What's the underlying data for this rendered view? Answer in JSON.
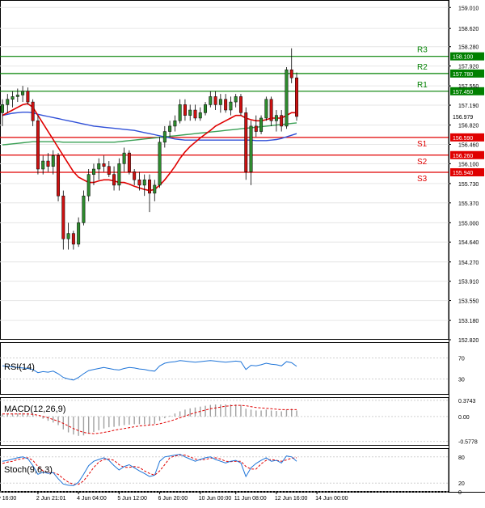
{
  "chart_data": {
    "type": "candlestick",
    "price_axis": {
      "ticks": [
        "159.010",
        "158.620",
        "158.280",
        "157.920",
        "157.550",
        "157.190",
        "156.820",
        "156.460",
        "156.100",
        "155.730",
        "155.370",
        "155.000",
        "154.640",
        "154.270",
        "153.910",
        "153.550",
        "153.180",
        "152.820"
      ],
      "ylim": [
        152.82,
        159.15
      ]
    },
    "levels": [
      {
        "label": "R3",
        "price": 158.1,
        "price_label": "158.100",
        "color": "#008000"
      },
      {
        "label": "R2",
        "price": 157.78,
        "price_label": "157.780",
        "color": "#008000"
      },
      {
        "label": "R1",
        "price": 157.45,
        "price_label": "157.450",
        "color": "#008000"
      },
      {
        "label": "S1",
        "price": 156.59,
        "price_label": "156.590",
        "color": "#e00000"
      },
      {
        "label": "S2",
        "price": 156.26,
        "price_label": "156.260",
        "color": "#e00000"
      },
      {
        "label": "S3",
        "price": 155.94,
        "price_label": "155.940",
        "color": "#e00000"
      }
    ],
    "last_price": {
      "price": 156.979,
      "label": "156.979"
    },
    "candles": [
      {
        "o": 157.05,
        "h": 157.3,
        "l": 156.8,
        "c": 157.2
      },
      {
        "o": 157.2,
        "h": 157.4,
        "l": 157.05,
        "c": 157.3
      },
      {
        "o": 157.3,
        "h": 157.45,
        "l": 157.15,
        "c": 157.35
      },
      {
        "o": 157.35,
        "h": 157.5,
        "l": 157.25,
        "c": 157.38
      },
      {
        "o": 157.38,
        "h": 157.55,
        "l": 157.25,
        "c": 157.45
      },
      {
        "o": 157.45,
        "h": 157.52,
        "l": 157.2,
        "c": 157.25
      },
      {
        "o": 157.25,
        "h": 157.3,
        "l": 156.8,
        "c": 156.9
      },
      {
        "o": 156.9,
        "h": 157.0,
        "l": 155.9,
        "c": 156.0
      },
      {
        "o": 156.0,
        "h": 156.25,
        "l": 155.9,
        "c": 156.15
      },
      {
        "o": 156.15,
        "h": 156.3,
        "l": 155.95,
        "c": 156.05
      },
      {
        "o": 156.05,
        "h": 156.35,
        "l": 155.9,
        "c": 156.25
      },
      {
        "o": 156.25,
        "h": 156.3,
        "l": 155.4,
        "c": 155.5
      },
      {
        "o": 155.5,
        "h": 155.6,
        "l": 154.5,
        "c": 154.7
      },
      {
        "o": 154.7,
        "h": 155.0,
        "l": 154.5,
        "c": 154.8
      },
      {
        "o": 154.8,
        "h": 154.85,
        "l": 154.5,
        "c": 154.6
      },
      {
        "o": 154.6,
        "h": 155.1,
        "l": 154.55,
        "c": 155.0
      },
      {
        "o": 155.0,
        "h": 155.6,
        "l": 154.95,
        "c": 155.5
      },
      {
        "o": 155.5,
        "h": 156.0,
        "l": 155.4,
        "c": 155.9
      },
      {
        "o": 155.9,
        "h": 156.1,
        "l": 155.7,
        "c": 156.0
      },
      {
        "o": 156.0,
        "h": 156.2,
        "l": 155.8,
        "c": 156.1
      },
      {
        "o": 156.1,
        "h": 156.25,
        "l": 155.95,
        "c": 156.05
      },
      {
        "o": 156.05,
        "h": 156.15,
        "l": 155.85,
        "c": 155.9
      },
      {
        "o": 155.9,
        "h": 156.05,
        "l": 155.6,
        "c": 155.7
      },
      {
        "o": 155.7,
        "h": 156.2,
        "l": 155.6,
        "c": 156.1
      },
      {
        "o": 156.1,
        "h": 156.4,
        "l": 155.95,
        "c": 156.3
      },
      {
        "o": 156.3,
        "h": 156.35,
        "l": 155.9,
        "c": 155.95
      },
      {
        "o": 155.95,
        "h": 156.0,
        "l": 155.7,
        "c": 155.8
      },
      {
        "o": 155.8,
        "h": 155.95,
        "l": 155.6,
        "c": 155.7
      },
      {
        "o": 155.7,
        "h": 155.9,
        "l": 155.5,
        "c": 155.8
      },
      {
        "o": 155.8,
        "h": 155.9,
        "l": 155.2,
        "c": 155.55
      },
      {
        "o": 155.55,
        "h": 155.8,
        "l": 155.4,
        "c": 155.7
      },
      {
        "o": 155.7,
        "h": 156.6,
        "l": 155.65,
        "c": 156.5
      },
      {
        "o": 156.5,
        "h": 156.8,
        "l": 156.4,
        "c": 156.7
      },
      {
        "o": 156.7,
        "h": 156.9,
        "l": 156.6,
        "c": 156.8
      },
      {
        "o": 156.8,
        "h": 157.0,
        "l": 156.7,
        "c": 156.9
      },
      {
        "o": 156.9,
        "h": 157.3,
        "l": 156.85,
        "c": 157.2
      },
      {
        "o": 157.2,
        "h": 157.3,
        "l": 156.9,
        "c": 157.0
      },
      {
        "o": 157.0,
        "h": 157.2,
        "l": 156.9,
        "c": 157.1
      },
      {
        "o": 157.1,
        "h": 157.2,
        "l": 156.9,
        "c": 156.95
      },
      {
        "o": 156.95,
        "h": 157.15,
        "l": 156.9,
        "c": 157.05
      },
      {
        "o": 157.05,
        "h": 157.25,
        "l": 157.0,
        "c": 157.2
      },
      {
        "o": 157.2,
        "h": 157.45,
        "l": 157.15,
        "c": 157.35
      },
      {
        "o": 157.35,
        "h": 157.45,
        "l": 157.1,
        "c": 157.2
      },
      {
        "o": 157.2,
        "h": 157.4,
        "l": 157.05,
        "c": 157.3
      },
      {
        "o": 157.3,
        "h": 157.4,
        "l": 157.05,
        "c": 157.1
      },
      {
        "o": 157.1,
        "h": 157.35,
        "l": 157.0,
        "c": 157.25
      },
      {
        "o": 157.25,
        "h": 157.4,
        "l": 157.15,
        "c": 157.35
      },
      {
        "o": 157.35,
        "h": 157.4,
        "l": 157.0,
        "c": 157.05
      },
      {
        "o": 157.05,
        "h": 157.15,
        "l": 155.8,
        "c": 155.95
      },
      {
        "o": 155.95,
        "h": 156.9,
        "l": 155.7,
        "c": 156.8
      },
      {
        "o": 156.8,
        "h": 157.0,
        "l": 156.6,
        "c": 156.7
      },
      {
        "o": 156.7,
        "h": 157.0,
        "l": 156.65,
        "c": 156.95
      },
      {
        "o": 156.95,
        "h": 157.35,
        "l": 156.9,
        "c": 157.3
      },
      {
        "o": 157.3,
        "h": 157.35,
        "l": 156.8,
        "c": 156.9
      },
      {
        "o": 156.9,
        "h": 157.1,
        "l": 156.7,
        "c": 157.0
      },
      {
        "o": 157.0,
        "h": 157.1,
        "l": 156.7,
        "c": 156.8
      },
      {
        "o": 156.8,
        "h": 157.9,
        "l": 156.75,
        "c": 157.85
      },
      {
        "o": 157.85,
        "h": 158.25,
        "l": 157.6,
        "c": 157.7
      },
      {
        "o": 157.7,
        "h": 157.8,
        "l": 156.9,
        "c": 156.98
      }
    ],
    "sma_fast_color": "#e00000",
    "sma_mid_color": "#3050d8",
    "sma_slow_color": "#3aa055",
    "sma_fast": [
      157.0,
      157.05,
      157.1,
      157.15,
      157.2,
      157.22,
      157.15,
      157.0,
      156.85,
      156.7,
      156.55,
      156.4,
      156.25,
      156.1,
      155.95,
      155.85,
      155.8,
      155.75,
      155.75,
      155.78,
      155.8,
      155.8,
      155.78,
      155.75,
      155.75,
      155.72,
      155.68,
      155.65,
      155.62,
      155.6,
      155.62,
      155.7,
      155.8,
      155.92,
      156.05,
      156.2,
      156.32,
      156.42,
      156.5,
      156.58,
      156.65,
      156.72,
      156.8,
      156.85,
      156.9,
      156.95,
      157.0,
      157.0,
      156.95,
      156.92,
      156.9,
      156.9,
      156.92,
      156.95,
      156.95,
      156.95,
      157.0,
      157.05,
      157.05
    ],
    "sma_mid": [
      157.0,
      157.02,
      157.04,
      157.05,
      157.06,
      157.06,
      157.05,
      157.02,
      157.0,
      156.98,
      156.96,
      156.94,
      156.92,
      156.9,
      156.88,
      156.86,
      156.84,
      156.82,
      156.8,
      156.79,
      156.78,
      156.77,
      156.76,
      156.75,
      156.74,
      156.73,
      156.72,
      156.7,
      156.68,
      156.66,
      156.64,
      156.62,
      156.6,
      156.58,
      156.56,
      156.55,
      156.54,
      156.54,
      156.54,
      156.54,
      156.54,
      156.54,
      156.54,
      156.54,
      156.54,
      156.54,
      156.54,
      156.54,
      156.54,
      156.54,
      156.53,
      156.53,
      156.53,
      156.54,
      156.55,
      156.57,
      156.6,
      156.63,
      156.66
    ],
    "sma_slow": [
      156.45,
      156.46,
      156.47,
      156.48,
      156.49,
      156.5,
      156.51,
      156.51,
      156.51,
      156.51,
      156.51,
      156.51,
      156.5,
      156.5,
      156.5,
      156.5,
      156.5,
      156.5,
      156.5,
      156.5,
      156.5,
      156.5,
      156.5,
      156.51,
      156.52,
      156.53,
      156.54,
      156.55,
      156.56,
      156.57,
      156.58,
      156.59,
      156.6,
      156.61,
      156.62,
      156.63,
      156.64,
      156.65,
      156.66,
      156.67,
      156.68,
      156.69,
      156.7,
      156.71,
      156.72,
      156.73,
      156.74,
      156.75,
      156.76,
      156.77,
      156.78,
      156.79,
      156.8,
      156.81,
      156.82,
      156.83,
      156.84,
      156.85,
      156.86
    ],
    "x_axis_labels": [
      "ry 16:00",
      "2 Jun 21:01",
      "4 Jun 04:00",
      "5 Jun 12:00",
      "6 Jun 20:00",
      "10 Jun 00:00",
      "11 Jun 08:00",
      "12 Jun 16:00",
      "14 Jun 00:00"
    ],
    "x_axis_label_candle_index": [
      0,
      7,
      15,
      23,
      31,
      39,
      46,
      54,
      62
    ],
    "rsi": {
      "title": "RSI(14)",
      "ticks": [
        "70",
        "30"
      ],
      "ylim": [
        0,
        100
      ],
      "values": [
        55,
        54,
        53,
        52,
        51,
        50,
        48,
        42,
        44,
        43,
        45,
        40,
        33,
        30,
        28,
        33,
        40,
        46,
        48,
        50,
        52,
        50,
        48,
        47,
        50,
        52,
        51,
        49,
        48,
        46,
        45,
        55,
        60,
        62,
        63,
        65,
        64,
        63,
        62,
        63,
        64,
        65,
        64,
        63,
        62,
        63,
        64,
        63,
        48,
        56,
        55,
        57,
        60,
        58,
        57,
        55,
        63,
        61,
        54
      ],
      "color": "#1e74d8"
    },
    "macd": {
      "title": "MACD(12,26,9)",
      "ticks": [
        "0.3743",
        "0.00",
        "-0.5778"
      ],
      "ylim": [
        -0.68,
        0.45
      ],
      "histogram": [
        0.05,
        0.06,
        0.07,
        0.07,
        0.08,
        0.08,
        0.06,
        0.0,
        -0.05,
        -0.1,
        -0.14,
        -0.2,
        -0.3,
        -0.37,
        -0.42,
        -0.45,
        -0.44,
        -0.4,
        -0.36,
        -0.32,
        -0.28,
        -0.25,
        -0.24,
        -0.22,
        -0.2,
        -0.19,
        -0.18,
        -0.18,
        -0.18,
        -0.19,
        -0.17,
        -0.1,
        -0.04,
        0.02,
        0.07,
        0.12,
        0.16,
        0.19,
        0.21,
        0.23,
        0.25,
        0.27,
        0.28,
        0.28,
        0.28,
        0.28,
        0.28,
        0.27,
        0.18,
        0.16,
        0.14,
        0.14,
        0.16,
        0.14,
        0.13,
        0.12,
        0.16,
        0.18,
        0.14
      ],
      "signal": [
        0.06,
        0.06,
        0.06,
        0.06,
        0.06,
        0.06,
        0.05,
        0.03,
        0.0,
        -0.03,
        -0.07,
        -0.11,
        -0.16,
        -0.22,
        -0.28,
        -0.33,
        -0.37,
        -0.39,
        -0.4,
        -0.39,
        -0.37,
        -0.35,
        -0.32,
        -0.3,
        -0.28,
        -0.26,
        -0.24,
        -0.22,
        -0.21,
        -0.2,
        -0.19,
        -0.17,
        -0.14,
        -0.11,
        -0.07,
        -0.03,
        0.01,
        0.05,
        0.09,
        0.12,
        0.15,
        0.18,
        0.2,
        0.22,
        0.24,
        0.25,
        0.26,
        0.26,
        0.25,
        0.23,
        0.21,
        0.2,
        0.19,
        0.18,
        0.17,
        0.16,
        0.16,
        0.16,
        0.16
      ],
      "hist_color": "#a0a0a0",
      "signal_color": "#e00000"
    },
    "stoch": {
      "title": "Stoch(9,6,3)",
      "ticks": [
        "80",
        "20",
        "0"
      ],
      "ylim": [
        0,
        100
      ],
      "k": [
        70,
        72,
        75,
        78,
        80,
        76,
        60,
        40,
        45,
        42,
        44,
        30,
        18,
        15,
        14,
        22,
        40,
        60,
        70,
        74,
        78,
        72,
        60,
        50,
        58,
        62,
        55,
        48,
        42,
        35,
        38,
        70,
        80,
        82,
        84,
        86,
        80,
        75,
        70,
        74,
        78,
        80,
        74,
        70,
        66,
        70,
        72,
        66,
        35,
        55,
        65,
        72,
        78,
        70,
        72,
        66,
        82,
        80,
        70
      ],
      "d": [
        65,
        68,
        70,
        74,
        76,
        78,
        72,
        58,
        48,
        44,
        44,
        40,
        30,
        22,
        17,
        17,
        25,
        40,
        56,
        68,
        74,
        75,
        72,
        62,
        56,
        56,
        58,
        56,
        48,
        42,
        38,
        48,
        62,
        78,
        82,
        84,
        84,
        80,
        75,
        73,
        74,
        77,
        78,
        75,
        70,
        69,
        70,
        70,
        58,
        52,
        52,
        64,
        72,
        74,
        72,
        70,
        73,
        77,
        78
      ],
      "k_color": "#1e74d8",
      "d_color": "#e00000"
    }
  }
}
